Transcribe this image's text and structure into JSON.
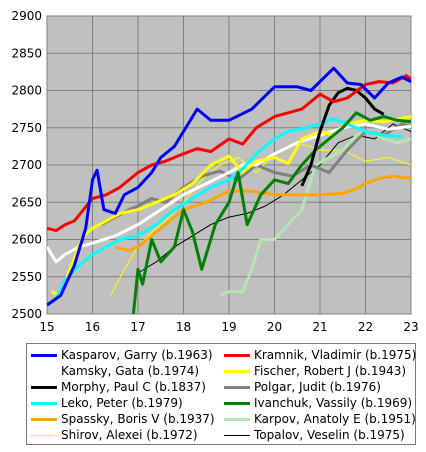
{
  "chart_data": {
    "type": "line",
    "title": "",
    "xlabel": "",
    "ylabel": "",
    "xlim": [
      15,
      23
    ],
    "ylim": [
      2500,
      2900
    ],
    "x_ticks": [
      "15",
      "16",
      "17",
      "18",
      "19",
      "20",
      "21",
      "22",
      "23"
    ],
    "y_ticks": [
      "2500",
      "2550",
      "2600",
      "2650",
      "2700",
      "2750",
      "2800",
      "2850",
      "2900"
    ],
    "grid": true,
    "legend_position": "bottom",
    "series": [
      {
        "name": "Kasparov, Garry (b.1963)",
        "color": "#0000ff",
        "width": 3,
        "points": [
          [
            15.0,
            2512
          ],
          [
            15.3,
            2525
          ],
          [
            15.6,
            2565
          ],
          [
            15.85,
            2615
          ],
          [
            16.0,
            2680
          ],
          [
            16.1,
            2693
          ],
          [
            16.25,
            2640
          ],
          [
            16.5,
            2635
          ],
          [
            16.7,
            2660
          ],
          [
            17.0,
            2670
          ],
          [
            17.3,
            2690
          ],
          [
            17.5,
            2710
          ],
          [
            17.8,
            2725
          ],
          [
            18.0,
            2745
          ],
          [
            18.3,
            2775
          ],
          [
            18.6,
            2760
          ],
          [
            19.0,
            2760
          ],
          [
            19.5,
            2775
          ],
          [
            20.0,
            2805
          ],
          [
            20.5,
            2805
          ],
          [
            20.8,
            2800
          ],
          [
            21.0,
            2812
          ],
          [
            21.3,
            2830
          ],
          [
            21.6,
            2810
          ],
          [
            21.9,
            2808
          ],
          [
            22.2,
            2790
          ],
          [
            22.5,
            2810
          ],
          [
            22.8,
            2818
          ],
          [
            23.0,
            2812
          ]
        ]
      },
      {
        "name": "Kramnik, Vladimir (b.1975)",
        "color": "#ff0000",
        "width": 3,
        "points": [
          [
            15.0,
            2615
          ],
          [
            15.2,
            2612
          ],
          [
            15.4,
            2620
          ],
          [
            15.6,
            2625
          ],
          [
            15.8,
            2640
          ],
          [
            16.0,
            2655
          ],
          [
            16.3,
            2660
          ],
          [
            16.6,
            2670
          ],
          [
            17.0,
            2690
          ],
          [
            17.3,
            2700
          ],
          [
            17.6,
            2705
          ],
          [
            18.0,
            2715
          ],
          [
            18.3,
            2722
          ],
          [
            18.6,
            2718
          ],
          [
            19.0,
            2735
          ],
          [
            19.3,
            2728
          ],
          [
            19.6,
            2750
          ],
          [
            20.0,
            2765
          ],
          [
            20.3,
            2770
          ],
          [
            20.6,
            2775
          ],
          [
            21.0,
            2795
          ],
          [
            21.3,
            2785
          ],
          [
            21.6,
            2790
          ],
          [
            22.0,
            2808
          ],
          [
            22.3,
            2812
          ],
          [
            22.6,
            2810
          ],
          [
            22.9,
            2820
          ],
          [
            23.0,
            2815
          ]
        ]
      },
      {
        "name": "Kamsky, Gata (b.1974)",
        "color": "#ffffff",
        "width": 3,
        "points": [
          [
            15.0,
            2590
          ],
          [
            15.2,
            2570
          ],
          [
            15.4,
            2580
          ],
          [
            15.7,
            2590
          ],
          [
            16.0,
            2595
          ],
          [
            16.5,
            2605
          ],
          [
            17.0,
            2620
          ],
          [
            17.5,
            2640
          ],
          [
            18.0,
            2660
          ],
          [
            18.5,
            2675
          ],
          [
            19.0,
            2690
          ],
          [
            19.3,
            2700
          ],
          [
            19.6,
            2700
          ],
          [
            20.0,
            2715
          ],
          [
            20.5,
            2730
          ],
          [
            21.0,
            2740
          ],
          [
            21.5,
            2750
          ],
          [
            22.0,
            2755
          ],
          [
            22.5,
            2748
          ],
          [
            23.0,
            2752
          ]
        ]
      },
      {
        "name": "Fischer, Robert J (b.1943)",
        "color": "#ffff00",
        "width": 3,
        "points": [
          [
            15.1,
            2530
          ],
          [
            15.3,
            2525
          ],
          [
            15.5,
            2560
          ],
          [
            15.8,
            2605
          ],
          [
            16.0,
            2615
          ],
          [
            16.3,
            2625
          ],
          [
            16.6,
            2635
          ],
          [
            17.0,
            2640
          ],
          [
            17.4,
            2650
          ],
          [
            17.8,
            2660
          ],
          [
            18.2,
            2675
          ],
          [
            18.6,
            2700
          ],
          [
            19.0,
            2712
          ],
          [
            19.3,
            2690
          ],
          [
            19.6,
            2705
          ],
          [
            20.0,
            2710
          ],
          [
            20.3,
            2702
          ],
          [
            20.6,
            2735
          ],
          [
            21.0,
            2745
          ],
          [
            21.3,
            2740
          ],
          [
            21.6,
            2755
          ],
          [
            22.0,
            2760
          ],
          [
            22.4,
            2758
          ],
          [
            23.0,
            2765
          ]
        ]
      },
      {
        "name": "Morphy, Paul C (b.1837)",
        "color": "#000000",
        "width": 3,
        "points": [
          [
            20.6,
            2672
          ],
          [
            20.8,
            2700
          ],
          [
            21.0,
            2745
          ],
          [
            21.2,
            2780
          ],
          [
            21.4,
            2797
          ],
          [
            21.6,
            2803
          ],
          [
            21.8,
            2800
          ],
          [
            22.0,
            2790
          ],
          [
            22.2,
            2775
          ],
          [
            22.4,
            2768
          ]
        ]
      },
      {
        "name": "Polgar, Judit (b.1976)",
        "color": "#808080",
        "width": 3,
        "points": [
          [
            16.2,
            2620
          ],
          [
            16.5,
            2630
          ],
          [
            16.8,
            2640
          ],
          [
            17.0,
            2645
          ],
          [
            17.3,
            2655
          ],
          [
            17.6,
            2650
          ],
          [
            18.0,
            2670
          ],
          [
            18.4,
            2685
          ],
          [
            18.8,
            2692
          ],
          [
            19.2,
            2680
          ],
          [
            19.6,
            2700
          ],
          [
            20.0,
            2690
          ],
          [
            20.4,
            2685
          ],
          [
            20.8,
            2700
          ],
          [
            21.2,
            2690
          ],
          [
            21.6,
            2720
          ],
          [
            22.0,
            2745
          ],
          [
            22.4,
            2740
          ],
          [
            22.8,
            2755
          ],
          [
            23.0,
            2752
          ]
        ]
      },
      {
        "name": "Leko, Peter (b.1979)",
        "color": "#00ffff",
        "width": 3,
        "points": [
          [
            15.0,
            2512
          ],
          [
            15.2,
            2520
          ],
          [
            15.4,
            2545
          ],
          [
            15.7,
            2565
          ],
          [
            16.0,
            2580
          ],
          [
            16.3,
            2590
          ],
          [
            16.6,
            2600
          ],
          [
            17.0,
            2605
          ],
          [
            17.4,
            2620
          ],
          [
            17.8,
            2640
          ],
          [
            18.2,
            2655
          ],
          [
            18.6,
            2670
          ],
          [
            19.0,
            2680
          ],
          [
            19.3,
            2695
          ],
          [
            19.6,
            2715
          ],
          [
            20.0,
            2735
          ],
          [
            20.3,
            2745
          ],
          [
            20.7,
            2750
          ],
          [
            21.0,
            2755
          ],
          [
            21.3,
            2762
          ],
          [
            21.6,
            2755
          ],
          [
            22.0,
            2745
          ],
          [
            22.4,
            2740
          ],
          [
            22.8,
            2738
          ]
        ]
      },
      {
        "name": "Ivanchuk, Vassily (b.1969)",
        "color": "#008000",
        "width": 3,
        "points": [
          [
            16.9,
            2500
          ],
          [
            17.0,
            2560
          ],
          [
            17.1,
            2540
          ],
          [
            17.3,
            2600
          ],
          [
            17.5,
            2570
          ],
          [
            17.8,
            2590
          ],
          [
            18.0,
            2640
          ],
          [
            18.2,
            2610
          ],
          [
            18.4,
            2560
          ],
          [
            18.7,
            2620
          ],
          [
            19.0,
            2650
          ],
          [
            19.2,
            2690
          ],
          [
            19.4,
            2620
          ],
          [
            19.7,
            2660
          ],
          [
            20.0,
            2680
          ],
          [
            20.3,
            2675
          ],
          [
            20.6,
            2700
          ],
          [
            20.9,
            2720
          ],
          [
            21.2,
            2735
          ],
          [
            21.5,
            2750
          ],
          [
            21.8,
            2770
          ],
          [
            22.1,
            2760
          ],
          [
            22.4,
            2765
          ],
          [
            22.7,
            2760
          ],
          [
            23.0,
            2758
          ]
        ]
      },
      {
        "name": "Spassky, Boris V (b.1937)",
        "color": "#ffa500",
        "width": 3,
        "points": [
          [
            16.5,
            2590
          ],
          [
            16.8,
            2585
          ],
          [
            17.0,
            2590
          ],
          [
            17.3,
            2605
          ],
          [
            17.7,
            2625
          ],
          [
            18.0,
            2640
          ],
          [
            18.5,
            2650
          ],
          [
            19.0,
            2665
          ],
          [
            19.5,
            2665
          ],
          [
            20.0,
            2660
          ],
          [
            20.5,
            2660
          ],
          [
            21.0,
            2660
          ],
          [
            21.5,
            2662
          ],
          [
            21.8,
            2668
          ],
          [
            22.0,
            2675
          ],
          [
            22.3,
            2682
          ],
          [
            22.6,
            2685
          ],
          [
            23.0,
            2682
          ]
        ]
      },
      {
        "name": "Karpov, Anatoly E (b.1951)",
        "color": "#b3e6b3",
        "width": 3,
        "points": [
          [
            18.8,
            2525
          ],
          [
            19.0,
            2530
          ],
          [
            19.3,
            2530
          ],
          [
            19.5,
            2560
          ],
          [
            19.7,
            2600
          ],
          [
            20.0,
            2600
          ],
          [
            20.3,
            2620
          ],
          [
            20.6,
            2640
          ],
          [
            20.9,
            2700
          ],
          [
            21.2,
            2710
          ],
          [
            21.5,
            2720
          ],
          [
            21.8,
            2740
          ],
          [
            22.1,
            2745
          ],
          [
            22.4,
            2735
          ],
          [
            22.7,
            2730
          ],
          [
            23.0,
            2735
          ]
        ]
      },
      {
        "name": "Shirov, Alexei (b.1972)",
        "color": "#ffff00",
        "width": 1,
        "points": [
          [
            16.4,
            2525
          ],
          [
            16.7,
            2560
          ],
          [
            17.0,
            2590
          ],
          [
            17.3,
            2610
          ],
          [
            17.6,
            2625
          ],
          [
            18.0,
            2650
          ],
          [
            18.4,
            2680
          ],
          [
            18.8,
            2700
          ],
          [
            19.2,
            2710
          ],
          [
            19.6,
            2690
          ],
          [
            20.0,
            2715
          ],
          [
            20.5,
            2730
          ],
          [
            21.0,
            2720
          ],
          [
            21.5,
            2720
          ],
          [
            22.0,
            2705
          ],
          [
            22.5,
            2710
          ],
          [
            23.0,
            2700
          ]
        ]
      },
      {
        "name": "Topalov, Veselin (b.1975)",
        "color": "#000000",
        "width": 1,
        "points": [
          [
            17.0,
            2555
          ],
          [
            17.4,
            2570
          ],
          [
            17.8,
            2590
          ],
          [
            18.2,
            2605
          ],
          [
            18.6,
            2620
          ],
          [
            19.0,
            2630
          ],
          [
            19.4,
            2635
          ],
          [
            19.8,
            2645
          ],
          [
            20.2,
            2660
          ],
          [
            20.6,
            2680
          ],
          [
            21.0,
            2700
          ],
          [
            21.4,
            2730
          ],
          [
            21.8,
            2740
          ],
          [
            22.2,
            2735
          ],
          [
            22.6,
            2755
          ],
          [
            23.0,
            2745
          ]
        ]
      }
    ]
  }
}
